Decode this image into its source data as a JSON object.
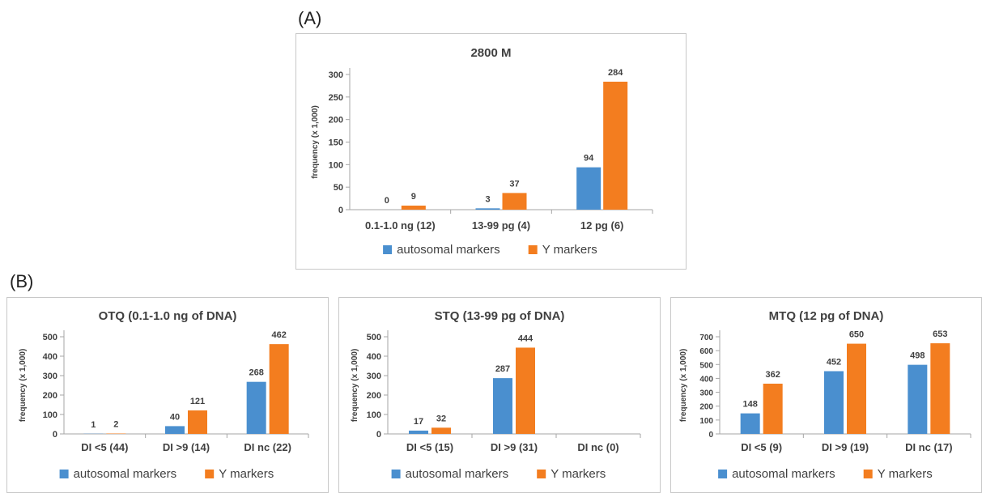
{
  "panel_labels": {
    "a": "(A)",
    "b": "(B)"
  },
  "colors": {
    "autosomal": "#4a8fcf",
    "y": "#f37d1f",
    "axis": "#a6a6a6",
    "text": "#404040"
  },
  "chart_data": [
    {
      "type": "bar",
      "title": "2800 M",
      "ylabel": "frequency (x 1,000)",
      "xlabel": "",
      "ylim": [
        0,
        300
      ],
      "yticks": [
        0,
        50,
        100,
        150,
        200,
        250,
        300
      ],
      "categories": [
        "0.1-1.0 ng (12)",
        "13-99 pg (4)",
        "12 pg (6)"
      ],
      "series": [
        {
          "name": "autosomal markers",
          "values": [
            0,
            3,
            94
          ]
        },
        {
          "name": "Y markers",
          "values": [
            9,
            37,
            284
          ]
        }
      ],
      "legend": "bottom",
      "grid": false
    },
    {
      "type": "bar",
      "title": "OTQ (0.1-1.0 ng of DNA)",
      "ylabel": "frequency (x 1,000)",
      "xlabel": "",
      "ylim": [
        0,
        500
      ],
      "yticks": [
        0,
        100,
        200,
        300,
        400,
        500
      ],
      "categories": [
        "DI <5 (44)",
        "DI >9 (14)",
        "DI nc (22)"
      ],
      "series": [
        {
          "name": "autosomal markers",
          "values": [
            1,
            40,
            268
          ]
        },
        {
          "name": "Y markers",
          "values": [
            2,
            121,
            462
          ]
        }
      ],
      "legend": "bottom",
      "grid": false
    },
    {
      "type": "bar",
      "title": "STQ (13-99 pg of DNA)",
      "ylabel": "frequency (x 1,000)",
      "xlabel": "",
      "ylim": [
        0,
        500
      ],
      "yticks": [
        0,
        100,
        200,
        300,
        400,
        500
      ],
      "categories": [
        "DI <5 (15)",
        "DI >9 (31)",
        "DI nc (0)"
      ],
      "series": [
        {
          "name": "autosomal markers",
          "values": [
            17,
            287,
            null
          ]
        },
        {
          "name": "Y markers",
          "values": [
            32,
            444,
            null
          ]
        }
      ],
      "legend": "bottom",
      "grid": false
    },
    {
      "type": "bar",
      "title": "MTQ (12 pg of DNA)",
      "ylabel": "frequency (x 1,000)",
      "xlabel": "",
      "ylim": [
        0,
        700
      ],
      "yticks": [
        0,
        100,
        200,
        300,
        400,
        500,
        600,
        700
      ],
      "categories": [
        "DI <5 (9)",
        "DI >9 (19)",
        "DI nc (17)"
      ],
      "series": [
        {
          "name": "autosomal markers",
          "values": [
            148,
            452,
            498
          ]
        },
        {
          "name": "Y markers",
          "values": [
            362,
            650,
            653
          ]
        }
      ],
      "legend": "bottom",
      "grid": false
    }
  ]
}
